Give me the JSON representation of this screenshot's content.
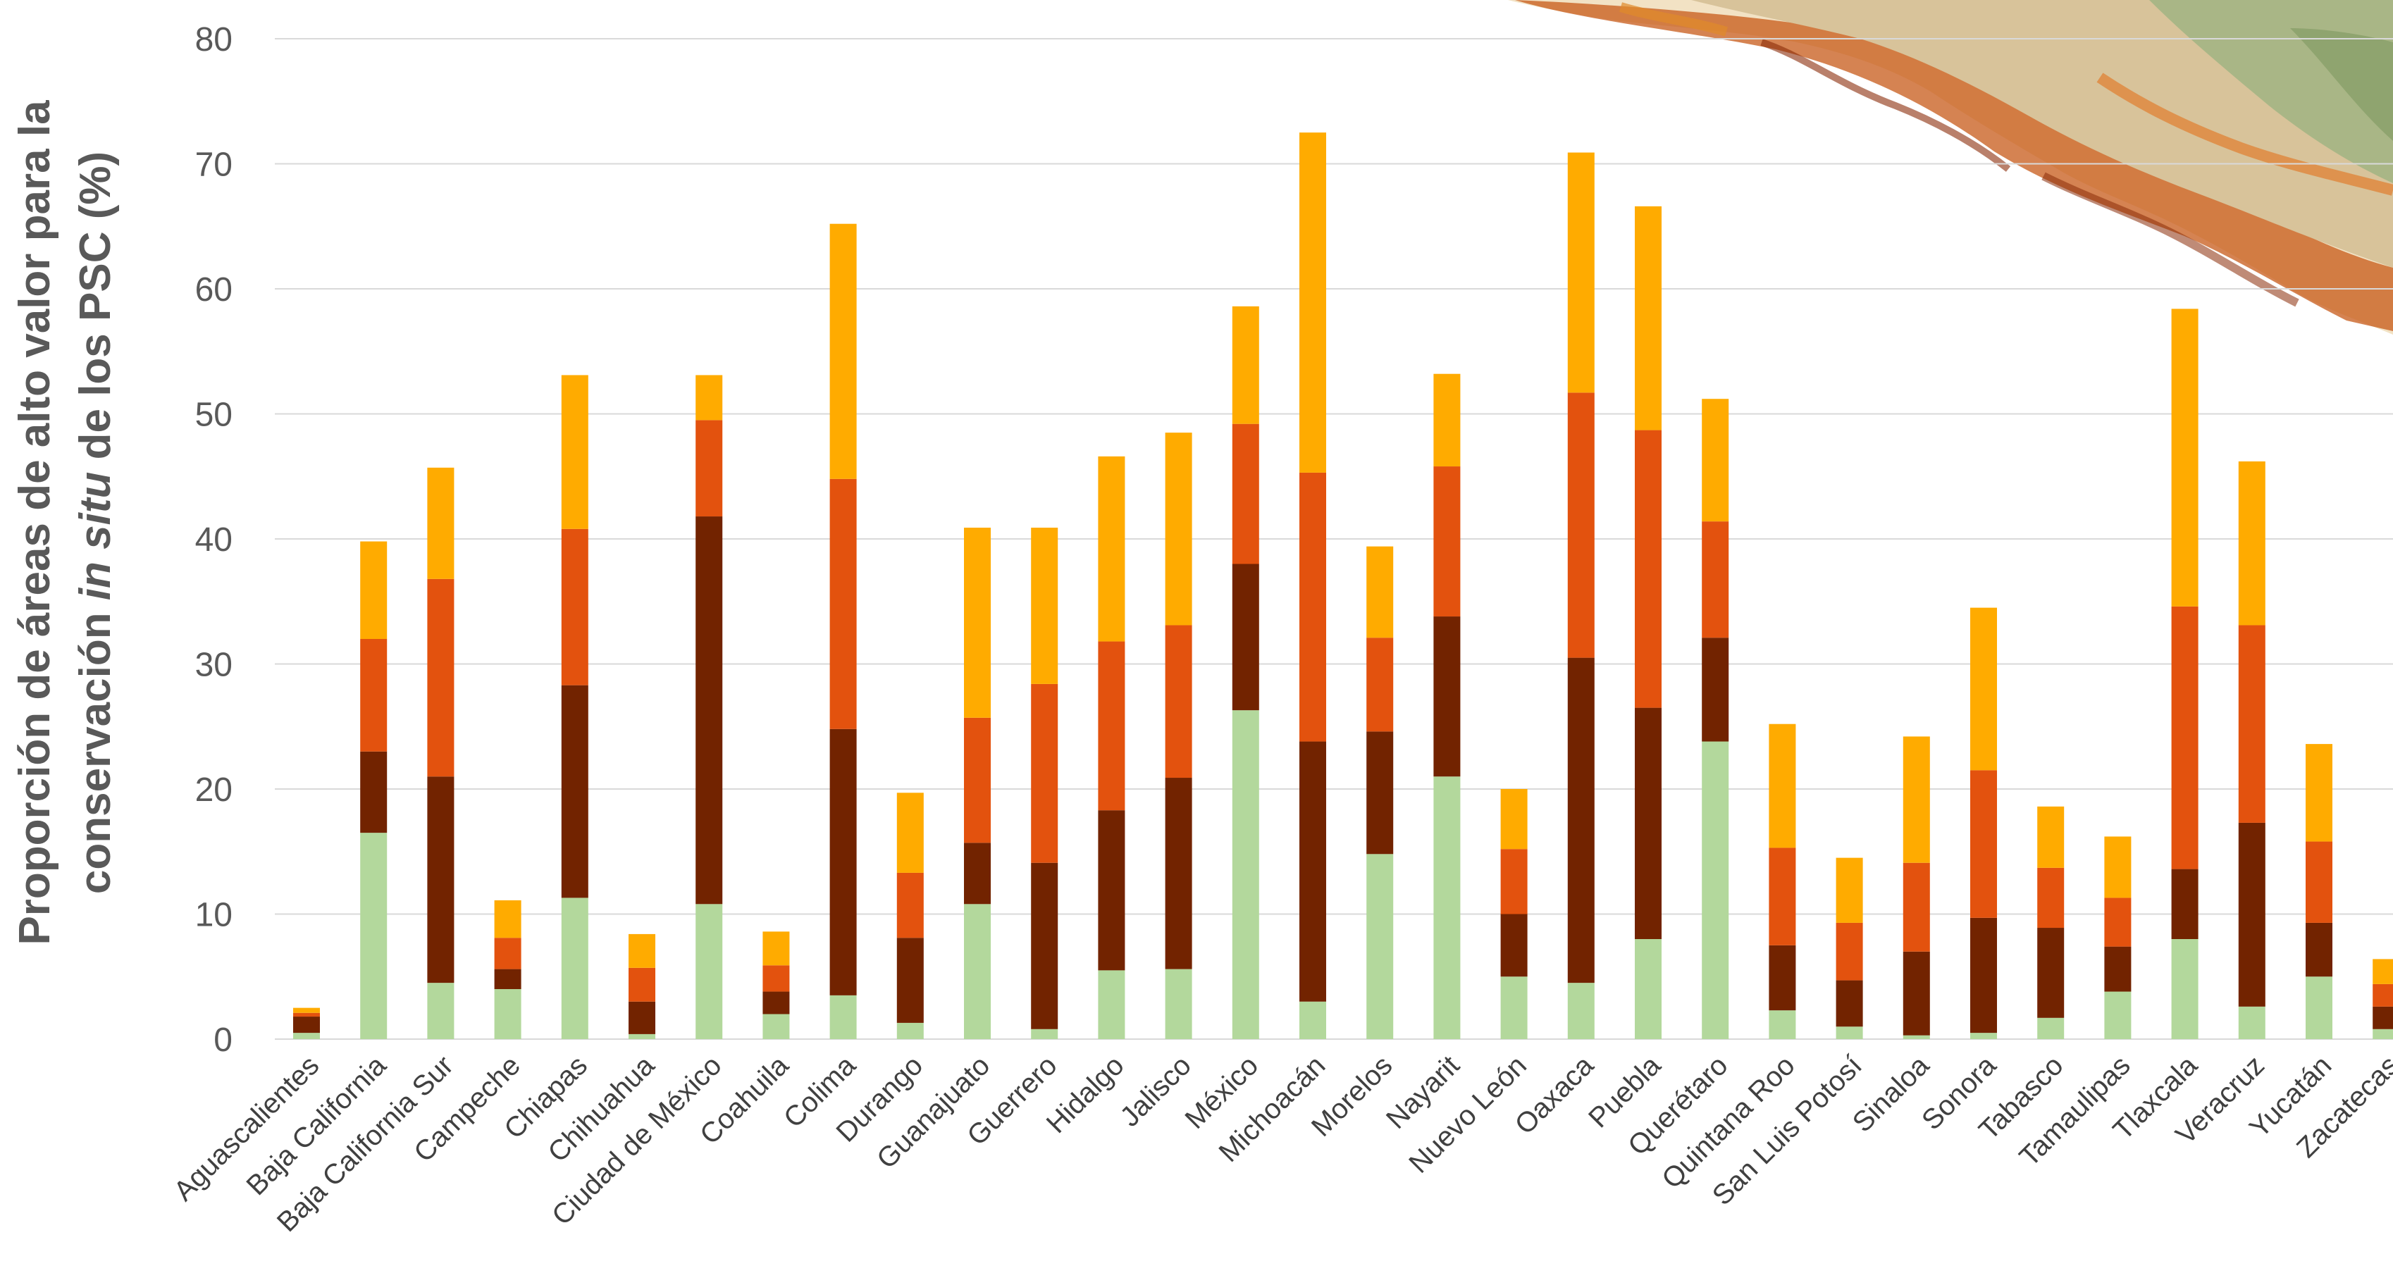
{
  "chart_data": {
    "type": "bar",
    "stacked": true,
    "ylabel_line1": "Proporción de áreas de alto valor para la",
    "ylabel_line2_pre": "conservación ",
    "ylabel_line2_italic": "in situ",
    "ylabel_line2_post": " de los PSC  (%)",
    "ylim": [
      0,
      80
    ],
    "yticks": [
      "0",
      "10",
      "20",
      "30",
      "40",
      "50",
      "60",
      "70",
      "80"
    ],
    "grid": true,
    "legend": "none",
    "categories": [
      "Aguascalientes",
      "Baja California",
      "Baja California Sur",
      "Campeche",
      "Chiapas",
      "Chihuahua",
      "Ciudad de México",
      "Coahuila",
      "Colima",
      "Durango",
      "Guanajuato",
      "Guerrero",
      "Hidalgo",
      "Jalisco",
      "México",
      "Michoacán",
      "Morelos",
      "Nayarit",
      "Nuevo León",
      "Oaxaca",
      "Puebla",
      "Querétaro",
      "Quintana Roo",
      "San Luis Potosí",
      "Sinaloa",
      "Sonora",
      "Tabasco",
      "Tamaulipas",
      "Tlaxcala",
      "Veracruz",
      "Yucatán",
      "Zacatecas"
    ],
    "series": [
      {
        "color": "#b3d89c",
        "values": [
          0.5,
          16.5,
          4.5,
          4.0,
          11.3,
          0.4,
          10.8,
          2.0,
          3.5,
          1.3,
          10.8,
          0.8,
          5.5,
          5.6,
          26.3,
          3.0,
          14.8,
          21.0,
          5.0,
          4.5,
          8.0,
          23.8,
          2.3,
          1.0,
          0.3,
          0.5,
          1.7,
          3.8,
          8.0,
          2.6,
          5.0,
          0.8
        ]
      },
      {
        "color": "#722300",
        "values": [
          1.3,
          6.5,
          16.5,
          1.6,
          17.0,
          2.6,
          31.0,
          1.8,
          21.3,
          6.8,
          4.9,
          13.3,
          12.8,
          15.3,
          11.7,
          20.8,
          9.8,
          12.8,
          5.0,
          26.0,
          18.5,
          8.3,
          5.2,
          3.7,
          6.7,
          9.2,
          7.2,
          3.6,
          5.6,
          14.7,
          4.3,
          1.8
        ]
      },
      {
        "color": "#e3520e",
        "values": [
          0.3,
          9.0,
          15.8,
          2.5,
          12.5,
          2.7,
          7.7,
          2.1,
          20.0,
          5.2,
          10.0,
          14.3,
          13.5,
          12.2,
          11.2,
          21.5,
          7.5,
          12.0,
          5.2,
          21.2,
          22.2,
          9.3,
          7.8,
          4.6,
          7.1,
          11.8,
          4.8,
          3.9,
          21.0,
          15.8,
          6.5,
          1.8
        ]
      },
      {
        "color": "#ffab00",
        "values": [
          0.4,
          7.8,
          8.9,
          3.0,
          12.3,
          2.7,
          3.6,
          2.7,
          20.4,
          6.4,
          15.2,
          12.5,
          14.8,
          15.4,
          9.4,
          27.2,
          7.3,
          7.4,
          4.8,
          19.2,
          17.9,
          9.8,
          9.9,
          5.2,
          10.1,
          13.0,
          4.9,
          4.9,
          23.8,
          13.1,
          7.8,
          2.0
        ]
      }
    ]
  },
  "decorations": {
    "map_image": "mexico-map-fragment"
  }
}
